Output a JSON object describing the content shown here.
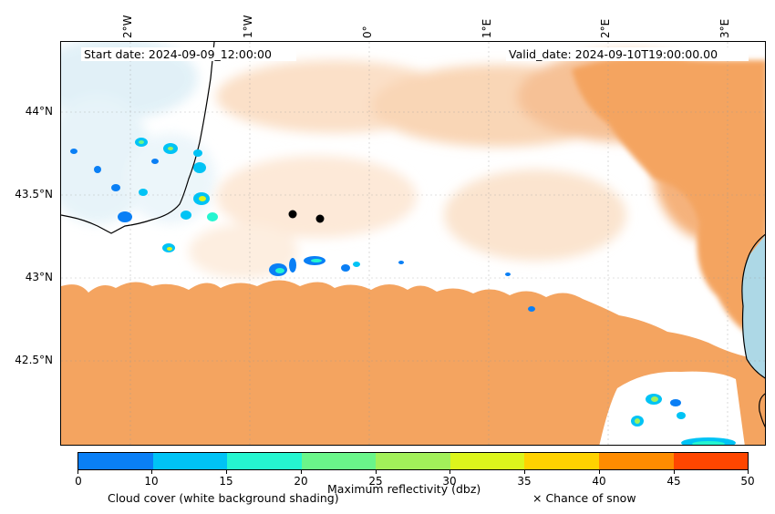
{
  "header": {
    "start_date": "Start date: 2024-09-09_12:00:00",
    "valid_date": "Valid_date: 2024-09-10T19:00:00.00"
  },
  "axes": {
    "longitude_ticks": [
      "2°W",
      "1°W",
      "0°",
      "1°E",
      "2°E",
      "3°E"
    ],
    "latitude_ticks": [
      "44°N",
      "43.5°N",
      "43°N",
      "42.5°N"
    ]
  },
  "colorbar": {
    "ticks": [
      "0",
      "10",
      "15",
      "20",
      "25",
      "30",
      "35",
      "40",
      "45",
      "50"
    ],
    "colors": [
      "#0a7ff5",
      "#00c3f5",
      "#25f5d0",
      "#6af58a",
      "#a2f05a",
      "#dcf51c",
      "#ffd200",
      "#ff8c00",
      "#ff4600"
    ],
    "label": "Maximum reflectivity (dbz)"
  },
  "legend": {
    "cloud_cover": "Cloud cover (white background shading)",
    "snow": "× Chance of snow"
  },
  "colors": {
    "rain_area": "#f4a460",
    "sea": "#add8e6",
    "cloud_light": "#d8ecf5"
  }
}
